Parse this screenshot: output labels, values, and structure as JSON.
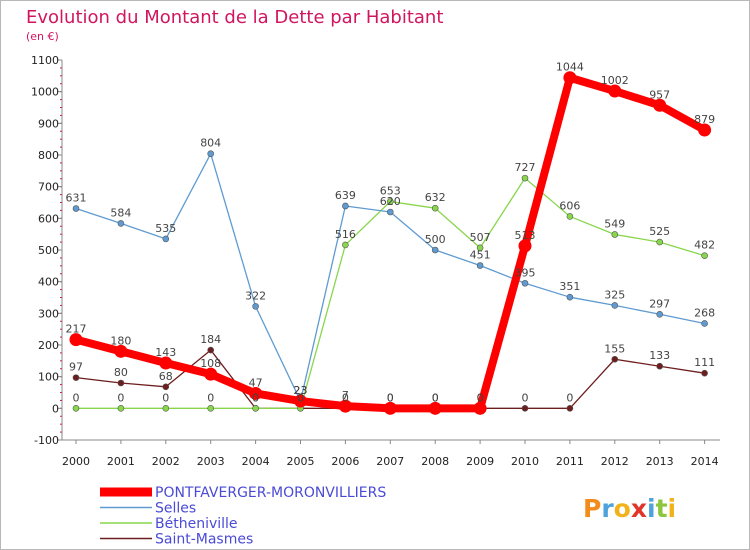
{
  "chart_data": {
    "type": "line",
    "title": "Evolution du Montant de la Dette par Habitant",
    "subtitle": "(en €)",
    "xlabel": "",
    "ylabel": "",
    "ylim": [
      -100,
      1100
    ],
    "yticks": [
      -100,
      0,
      100,
      200,
      300,
      400,
      500,
      600,
      700,
      800,
      900,
      1000,
      1100
    ],
    "grid": false,
    "legend_position": "bottom-left",
    "x": [
      "2000",
      "2001",
      "2002",
      "2003",
      "2004",
      "2005",
      "2006",
      "2007",
      "2008",
      "2009",
      "2010",
      "2011",
      "2012",
      "2013",
      "2014"
    ],
    "series": [
      {
        "name": "Saint-Masmes",
        "color": "#6e1e1e",
        "values": [
          97,
          80,
          68,
          184,
          0,
          0,
          0,
          0,
          0,
          0,
          0,
          0,
          155,
          133,
          111
        ],
        "labels": [
          "97",
          "80",
          "68",
          "184",
          "0",
          "0",
          "0",
          "0",
          "0",
          "0",
          "0",
          "0",
          "155",
          "133",
          "111"
        ]
      },
      {
        "name": "Bétheniville",
        "color": "#88d64c",
        "values": [
          0,
          0,
          0,
          0,
          0,
          0,
          516,
          653,
          632,
          507,
          727,
          606,
          549,
          525,
          482
        ],
        "labels": [
          "0",
          "0",
          "0",
          "0",
          "0",
          "0",
          "516",
          "653",
          "632",
          "507",
          "727",
          "606",
          "549",
          "525",
          "482"
        ]
      },
      {
        "name": "Selles",
        "color": "#5f9bd1",
        "values": [
          631,
          584,
          535,
          804,
          322,
          23,
          639,
          620,
          500,
          451,
          395,
          351,
          325,
          297,
          268
        ],
        "labels": [
          "631",
          "584",
          "535",
          "804",
          "322",
          "23",
          "639",
          "620",
          "500",
          "451",
          "395",
          "351",
          "325",
          "297",
          "268"
        ]
      },
      {
        "name": "PONTFAVERGER-MORONVILLIERS",
        "color": "#ff0000",
        "values": [
          217,
          180,
          143,
          108,
          47,
          23,
          7,
          0,
          0,
          0,
          513,
          1044,
          1002,
          957,
          879
        ],
        "labels": [
          "217",
          "180",
          "143",
          "108",
          "47",
          "23",
          "7",
          "0",
          "0",
          "0",
          "513",
          "1044",
          "1002",
          "957",
          "879"
        ]
      }
    ],
    "legend": [
      "PONTFAVERGER-MORONVILLIERS",
      "Selles",
      "Bétheniville",
      "Saint-Masmes"
    ]
  },
  "colors": {
    "title": "#d1155f",
    "subtitle": "#d1155f",
    "axis": "#888888",
    "tick_text": "#222222",
    "value_text": "#444444",
    "legend_text": "#4a4ad6"
  },
  "brand": {
    "logo_text": "Proxiti"
  }
}
